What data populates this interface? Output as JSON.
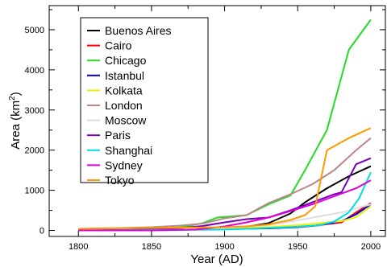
{
  "chart_data": {
    "type": "line",
    "xlabel": "Year (AD)",
    "ylabel": "Area (km",
    "ylabel_sup": "2",
    "ylabel_close": ")",
    "xlim": [
      1780,
      2010
    ],
    "ylim": [
      -150,
      5600
    ],
    "xticks": [
      1800,
      1850,
      1900,
      1950,
      2000
    ],
    "yticks": [
      0,
      1000,
      2000,
      3000,
      4000,
      5000
    ],
    "grid": false,
    "legend_position": "top-left",
    "series": [
      {
        "name": "Buenos Aires",
        "color": "#000000",
        "x": [
          1800,
          1850,
          1900,
          1915,
          1930,
          1945,
          1955,
          1970,
          1985,
          2000
        ],
        "y": [
          20,
          30,
          50,
          90,
          180,
          420,
          700,
          1050,
          1350,
          1600
        ]
      },
      {
        "name": "Cairo",
        "color": "#ff0000",
        "x": [
          1800,
          1850,
          1900,
          1930,
          1960,
          1980,
          1990,
          2000
        ],
        "y": [
          20,
          25,
          35,
          60,
          110,
          200,
          450,
          680
        ]
      },
      {
        "name": "Chicago",
        "color": "#22dd22",
        "x": [
          1800,
          1830,
          1850,
          1870,
          1885,
          1895,
          1915,
          1930,
          1945,
          1955,
          1970,
          1985,
          2000
        ],
        "y": [
          0,
          0,
          20,
          80,
          180,
          320,
          380,
          650,
          870,
          1500,
          2500,
          4500,
          5250
        ]
      },
      {
        "name": "Istanbul",
        "color": "#0000dd",
        "x": [
          1800,
          1850,
          1900,
          1930,
          1950,
          1965,
          1980,
          1990,
          2000
        ],
        "y": [
          20,
          25,
          35,
          50,
          80,
          130,
          230,
          400,
          650
        ]
      },
      {
        "name": "Kolkata",
        "color": "#eeee00",
        "x": [
          1800,
          1850,
          1900,
          1930,
          1950,
          1965,
          1980,
          1990,
          2000
        ],
        "y": [
          20,
          30,
          50,
          80,
          130,
          180,
          230,
          330,
          600
        ]
      },
      {
        "name": "London",
        "color": "#bb8888",
        "x": [
          1800,
          1830,
          1850,
          1870,
          1885,
          1900,
          1915,
          1930,
          1945,
          1960,
          1975,
          1990,
          2000
        ],
        "y": [
          40,
          60,
          80,
          120,
          170,
          300,
          380,
          680,
          900,
          1150,
          1500,
          2000,
          2300
        ]
      },
      {
        "name": "Moscow",
        "color": "#dddddd",
        "x": [
          1800,
          1850,
          1900,
          1930,
          1950,
          1965,
          1980,
          1990,
          2000
        ],
        "y": [
          20,
          30,
          60,
          130,
          250,
          350,
          450,
          550,
          650
        ]
      },
      {
        "name": "Paris",
        "color": "#7700bb",
        "x": [
          1800,
          1830,
          1850,
          1870,
          1885,
          1900,
          1915,
          1930,
          1945,
          1960,
          1975,
          1980,
          1990,
          2000
        ],
        "y": [
          0,
          10,
          30,
          60,
          110,
          200,
          280,
          320,
          500,
          700,
          900,
          950,
          1650,
          1800
        ]
      },
      {
        "name": "Shanghai",
        "color": "#00dddd",
        "x": [
          1800,
          1850,
          1900,
          1930,
          1950,
          1965,
          1975,
          1985,
          1992,
          2000
        ],
        "y": [
          0,
          10,
          20,
          60,
          90,
          130,
          220,
          450,
          800,
          1450
        ]
      },
      {
        "name": "Sydney",
        "color": "#dd00dd",
        "x": [
          1800,
          1850,
          1880,
          1900,
          1915,
          1930,
          1945,
          1960,
          1975,
          1990,
          2000
        ],
        "y": [
          0,
          0,
          20,
          100,
          200,
          320,
          480,
          650,
          850,
          1050,
          1250
        ]
      },
      {
        "name": "Tokyo",
        "color": "#ff9900",
        "x": [
          1800,
          1850,
          1900,
          1915,
          1930,
          1945,
          1955,
          1962,
          1970,
          1985,
          2000
        ],
        "y": [
          40,
          60,
          80,
          100,
          150,
          260,
          380,
          600,
          2000,
          2300,
          2550
        ]
      }
    ]
  }
}
